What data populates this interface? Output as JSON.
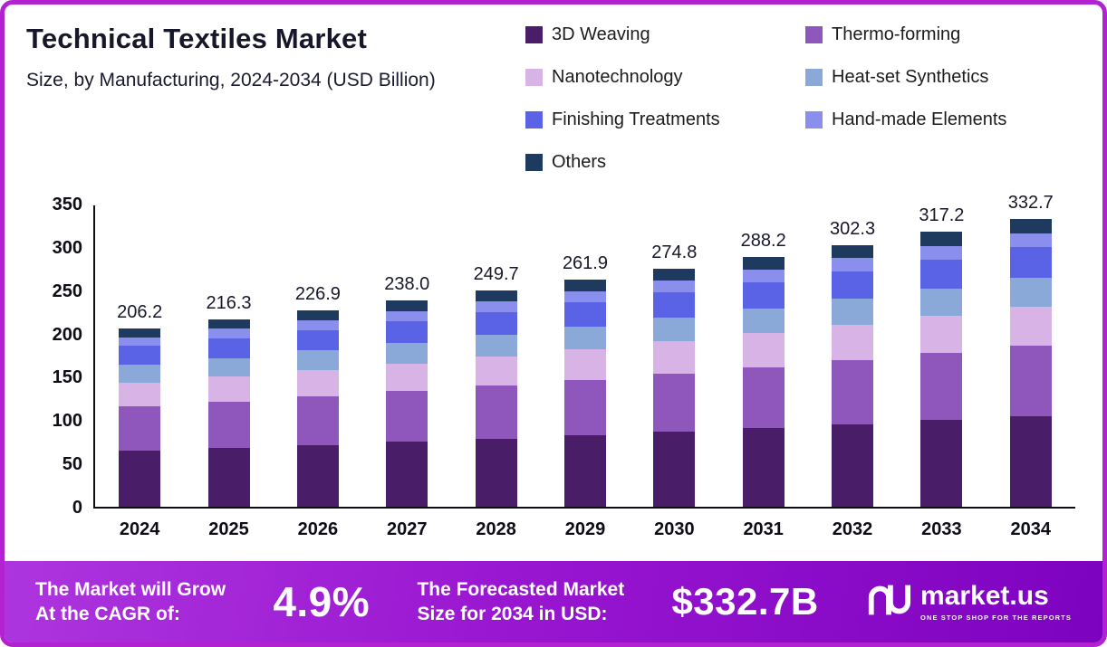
{
  "header": {
    "title": "Technical Textiles Market",
    "subtitle": "Size, by Manufacturing, 2024-2034 (USD Billion)"
  },
  "legend": {
    "position": "top-right",
    "items": [
      {
        "label": "3D Weaving",
        "color": "#4a1d68"
      },
      {
        "label": "Thermo-forming",
        "color": "#8f56bb"
      },
      {
        "label": "Nanotechnology",
        "color": "#d8b4e6"
      },
      {
        "label": "Heat-set Synthetics",
        "color": "#8aa8d8"
      },
      {
        "label": "Finishing Treatments",
        "color": "#5a63e6"
      },
      {
        "label": "Hand-made Elements",
        "color": "#8a8fee"
      },
      {
        "label": "Others",
        "color": "#1e3a5f"
      }
    ]
  },
  "chart_data": {
    "type": "bar",
    "stacked": true,
    "title": "Technical Textiles Market Size, by Manufacturing, 2024-2034 (USD Billion)",
    "xlabel": "",
    "ylabel": "",
    "grid": false,
    "legend_position": "top-right",
    "ylim": [
      0,
      350
    ],
    "yticks": [
      0,
      50,
      100,
      150,
      200,
      250,
      300,
      350
    ],
    "categories": [
      "2024",
      "2025",
      "2026",
      "2027",
      "2028",
      "2029",
      "2030",
      "2031",
      "2032",
      "2033",
      "2034"
    ],
    "totals": [
      206.2,
      216.3,
      226.9,
      238.0,
      249.7,
      261.9,
      274.8,
      288.2,
      302.3,
      317.2,
      332.7
    ],
    "total_labels": [
      "206.2",
      "216.3",
      "226.9",
      "238.0",
      "249.7",
      "261.9",
      "274.8",
      "288.2",
      "302.3",
      "317.2",
      "332.7"
    ],
    "series": [
      {
        "name": "3D Weaving",
        "color": "#4a1d68",
        "values": [
          65.0,
          68.1,
          71.5,
          75.0,
          78.7,
          82.5,
          86.6,
          90.8,
          95.2,
          99.9,
          104.8
        ]
      },
      {
        "name": "Thermo-forming",
        "color": "#8f56bb",
        "values": [
          50.5,
          53.0,
          55.6,
          58.3,
          61.2,
          64.2,
          67.3,
          70.6,
          74.1,
          77.7,
          81.5
        ]
      },
      {
        "name": "Nanotechnology",
        "color": "#d8b4e6",
        "values": [
          27.8,
          29.2,
          30.6,
          32.1,
          33.7,
          35.4,
          37.1,
          38.9,
          40.8,
          42.8,
          44.9
        ]
      },
      {
        "name": "Heat-set Synthetics",
        "color": "#8aa8d8",
        "values": [
          20.6,
          21.6,
          22.7,
          23.8,
          25.0,
          26.2,
          27.5,
          28.8,
          30.2,
          31.7,
          33.3
        ]
      },
      {
        "name": "Finishing Treatments",
        "color": "#5a63e6",
        "values": [
          21.7,
          22.7,
          23.8,
          25.0,
          26.2,
          27.5,
          28.9,
          30.3,
          31.7,
          33.3,
          34.9
        ]
      },
      {
        "name": "Hand-made Elements",
        "color": "#8a8fee",
        "values": [
          10.3,
          10.8,
          11.3,
          11.9,
          12.5,
          13.1,
          13.7,
          14.4,
          15.1,
          15.9,
          16.6
        ]
      },
      {
        "name": "Others",
        "color": "#1e3a5f",
        "values": [
          10.3,
          10.9,
          11.4,
          11.9,
          12.4,
          13.0,
          13.7,
          14.4,
          15.2,
          15.9,
          16.7
        ]
      }
    ]
  },
  "banner": {
    "cagr_line1": "The Market will Grow",
    "cagr_line2": "At the CAGR of:",
    "cagr_value": "4.9%",
    "forecast_line1": "The Forecasted Market",
    "forecast_line2": "Size for 2034 in USD:",
    "forecast_value": "$332.7B",
    "brand_name": "market.us",
    "brand_tagline": "One Stop Shop For The Reports"
  }
}
